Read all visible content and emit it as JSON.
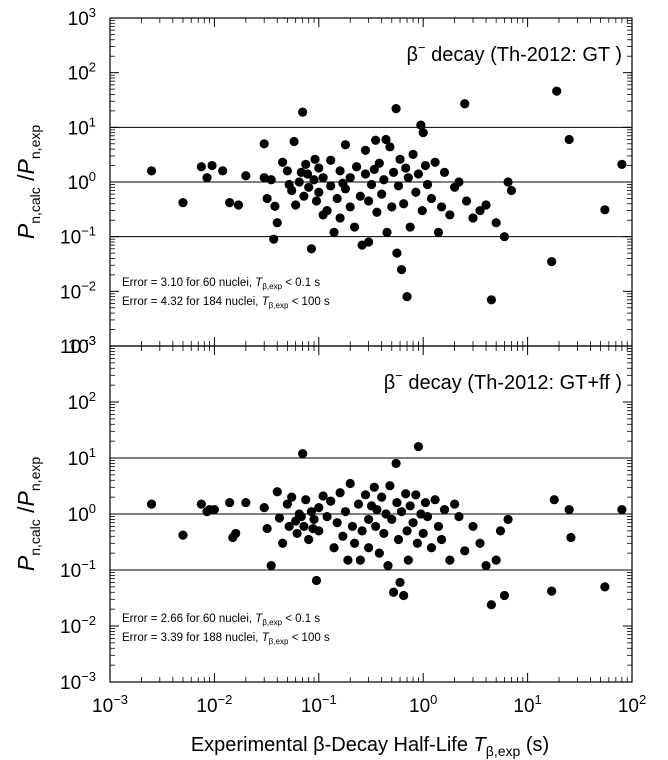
{
  "chart_data": [
    {
      "type": "scatter",
      "annotation": "β⁻ decay (Th-2012: GT )",
      "annotation_prefix": "β",
      "annotation_sup": "−",
      "annotation_rest": " decay (Th-2012: GT )",
      "ylabel_main": "P",
      "ylabel_sub1": "n,calc",
      "ylabel_sep": " /",
      "ylabel_main2": "P",
      "ylabel_sub2": "n,exp",
      "x_scale": "log",
      "y_scale": "log",
      "xlim": [
        0.001,
        100
      ],
      "ylim": [
        0.001,
        1000
      ],
      "y_ticks": [
        "10-3",
        "10-2",
        "10-1",
        "100",
        "101",
        "102",
        "103"
      ],
      "reference_lines": [
        0.1,
        1,
        10
      ],
      "error_lines": [
        {
          "text": "Error = 3.10  for 60 nuclei, ",
          "var": "T",
          "sub": "β,exp",
          "cond": " < 0.1 s"
        },
        {
          "text": "Error = 4.32  for 184 nuclei, ",
          "var": "T",
          "sub": "β,exp",
          "cond": " < 100 s"
        }
      ],
      "points": [
        [
          0.0025,
          1.6
        ],
        [
          0.005,
          0.42
        ],
        [
          0.0075,
          1.9
        ],
        [
          0.0095,
          2.0
        ],
        [
          0.0085,
          1.2
        ],
        [
          0.012,
          1.6
        ],
        [
          0.014,
          0.42
        ],
        [
          0.017,
          0.38
        ],
        [
          0.02,
          1.3
        ],
        [
          0.03,
          5.0
        ],
        [
          0.035,
          1.1
        ],
        [
          0.03,
          1.2
        ],
        [
          0.032,
          0.5
        ],
        [
          0.038,
          0.36
        ],
        [
          0.04,
          0.18
        ],
        [
          0.037,
          0.09
        ],
        [
          0.045,
          2.3
        ],
        [
          0.05,
          1.6
        ],
        [
          0.052,
          0.9
        ],
        [
          0.055,
          0.7
        ],
        [
          0.058,
          5.5
        ],
        [
          0.06,
          0.38
        ],
        [
          0.065,
          1.0
        ],
        [
          0.068,
          1.5
        ],
        [
          0.07,
          19.0
        ],
        [
          0.072,
          0.55
        ],
        [
          0.075,
          2.1
        ],
        [
          0.078,
          1.4
        ],
        [
          0.08,
          0.8
        ],
        [
          0.085,
          0.06
        ],
        [
          0.09,
          1.1
        ],
        [
          0.092,
          2.6
        ],
        [
          0.095,
          0.45
        ],
        [
          0.1,
          1.8
        ],
        [
          0.1,
          0.65
        ],
        [
          0.11,
          1.2
        ],
        [
          0.11,
          0.25
        ],
        [
          0.12,
          0.3
        ],
        [
          0.13,
          2.5
        ],
        [
          0.13,
          0.85
        ],
        [
          0.14,
          0.12
        ],
        [
          0.15,
          0.5
        ],
        [
          0.16,
          1.6
        ],
        [
          0.16,
          0.22
        ],
        [
          0.17,
          0.95
        ],
        [
          0.18,
          4.8
        ],
        [
          0.18,
          0.75
        ],
        [
          0.2,
          1.2
        ],
        [
          0.2,
          0.35
        ],
        [
          0.22,
          0.15
        ],
        [
          0.23,
          1.9
        ],
        [
          0.25,
          0.55
        ],
        [
          0.26,
          0.07
        ],
        [
          0.28,
          1.4
        ],
        [
          0.28,
          3.8
        ],
        [
          0.3,
          0.45
        ],
        [
          0.3,
          0.08
        ],
        [
          0.32,
          0.9
        ],
        [
          0.34,
          1.7
        ],
        [
          0.35,
          5.8
        ],
        [
          0.36,
          0.28
        ],
        [
          0.38,
          2.2
        ],
        [
          0.4,
          0.6
        ],
        [
          0.42,
          1.1
        ],
        [
          0.44,
          6.0
        ],
        [
          0.45,
          0.12
        ],
        [
          0.48,
          4.4
        ],
        [
          0.5,
          0.35
        ],
        [
          0.52,
          1.5
        ],
        [
          0.55,
          22.0
        ],
        [
          0.56,
          0.05
        ],
        [
          0.58,
          0.85
        ],
        [
          0.6,
          2.6
        ],
        [
          0.62,
          0.025
        ],
        [
          0.65,
          0.4
        ],
        [
          0.68,
          1.8
        ],
        [
          0.7,
          0.008
        ],
        [
          0.72,
          1.2
        ],
        [
          0.75,
          0.15
        ],
        [
          0.8,
          3.2
        ],
        [
          0.85,
          0.65
        ],
        [
          0.9,
          1.4
        ],
        [
          0.95,
          11.0
        ],
        [
          0.98,
          0.3
        ],
        [
          1.0,
          8.0
        ],
        [
          1.05,
          2.0
        ],
        [
          1.1,
          0.9
        ],
        [
          1.2,
          0.5
        ],
        [
          1.3,
          2.3
        ],
        [
          1.4,
          0.12
        ],
        [
          1.5,
          0.35
        ],
        [
          1.6,
          1.5
        ],
        [
          1.8,
          0.25
        ],
        [
          2.0,
          0.8
        ],
        [
          2.2,
          1.0
        ],
        [
          2.5,
          27.0
        ],
        [
          2.6,
          0.45
        ],
        [
          3.0,
          0.22
        ],
        [
          3.5,
          0.3
        ],
        [
          4.0,
          0.38
        ],
        [
          4.5,
          0.007
        ],
        [
          5.0,
          0.18
        ],
        [
          6.0,
          0.1
        ],
        [
          6.5,
          1.0
        ],
        [
          7.0,
          0.7
        ],
        [
          17.0,
          0.035
        ],
        [
          19.0,
          46.0
        ],
        [
          25.0,
          6.0
        ],
        [
          55.0,
          0.31
        ],
        [
          80.0,
          2.1
        ]
      ]
    },
    {
      "type": "scatter",
      "annotation": "β⁻ decay (Th-2012: GT+ff )",
      "annotation_prefix": "β",
      "annotation_sup": "−",
      "annotation_rest": " decay (Th-2012: GT+ff )",
      "ylabel_main": "P",
      "ylabel_sub1": "n,calc",
      "ylabel_sep": " /",
      "ylabel_main2": "P",
      "ylabel_sub2": "n,exp",
      "xlabel_prefix": "Experimental β-Decay Half-Life ",
      "xlabel_var": "T",
      "xlabel_sub": "β,exp",
      "xlabel_suffix": " (s)",
      "x_scale": "log",
      "y_scale": "log",
      "xlim": [
        0.001,
        100
      ],
      "ylim": [
        0.001,
        1000
      ],
      "x_ticks": [
        "10-3",
        "10-2",
        "10-1",
        "100",
        "101",
        "102"
      ],
      "y_ticks": [
        "10-3",
        "10-2",
        "10-1",
        "100",
        "101",
        "102",
        "103"
      ],
      "reference_lines": [
        0.1,
        1,
        10
      ],
      "error_lines": [
        {
          "text": "Error = 2.66  for 60 nuclei, ",
          "var": "T",
          "sub": "β,exp",
          "cond": " < 0.1 s"
        },
        {
          "text": "Error = 3.39  for 188 nuclei, ",
          "var": "T",
          "sub": "β,exp",
          "cond": " < 100 s"
        }
      ],
      "points": [
        [
          0.0025,
          1.5
        ],
        [
          0.005,
          0.42
        ],
        [
          0.0075,
          1.5
        ],
        [
          0.009,
          1.2
        ],
        [
          0.0085,
          1.1
        ],
        [
          0.01,
          1.2
        ],
        [
          0.015,
          0.38
        ],
        [
          0.016,
          0.45
        ],
        [
          0.02,
          1.6
        ],
        [
          0.014,
          1.6
        ],
        [
          0.03,
          1.3
        ],
        [
          0.032,
          0.55
        ],
        [
          0.035,
          0.12
        ],
        [
          0.04,
          2.5
        ],
        [
          0.042,
          0.85
        ],
        [
          0.045,
          0.3
        ],
        [
          0.05,
          1.5
        ],
        [
          0.052,
          0.6
        ],
        [
          0.055,
          2.0
        ],
        [
          0.06,
          0.75
        ],
        [
          0.062,
          0.45
        ],
        [
          0.065,
          1.0
        ],
        [
          0.068,
          0.9
        ],
        [
          0.07,
          12.0
        ],
        [
          0.072,
          0.6
        ],
        [
          0.075,
          1.8
        ],
        [
          0.08,
          0.35
        ],
        [
          0.085,
          1.1
        ],
        [
          0.088,
          0.55
        ],
        [
          0.09,
          0.8
        ],
        [
          0.095,
          0.065
        ],
        [
          0.1,
          1.3
        ],
        [
          0.1,
          0.5
        ],
        [
          0.11,
          2.1
        ],
        [
          0.12,
          0.9
        ],
        [
          0.13,
          1.7
        ],
        [
          0.14,
          0.25
        ],
        [
          0.15,
          0.7
        ],
        [
          0.16,
          2.4
        ],
        [
          0.17,
          0.4
        ],
        [
          0.18,
          1.1
        ],
        [
          0.19,
          0.15
        ],
        [
          0.2,
          3.5
        ],
        [
          0.21,
          0.6
        ],
        [
          0.22,
          0.3
        ],
        [
          0.24,
          1.5
        ],
        [
          0.25,
          0.15
        ],
        [
          0.26,
          0.5
        ],
        [
          0.28,
          2.2
        ],
        [
          0.3,
          0.8
        ],
        [
          0.3,
          0.25
        ],
        [
          0.32,
          1.4
        ],
        [
          0.34,
          3.0
        ],
        [
          0.35,
          0.6
        ],
        [
          0.36,
          1.2
        ],
        [
          0.38,
          0.2
        ],
        [
          0.4,
          2.0
        ],
        [
          0.42,
          0.45
        ],
        [
          0.44,
          1.0
        ],
        [
          0.46,
          0.12
        ],
        [
          0.48,
          3.2
        ],
        [
          0.5,
          0.8
        ],
        [
          0.52,
          0.04
        ],
        [
          0.55,
          8.0
        ],
        [
          0.56,
          1.6
        ],
        [
          0.58,
          0.35
        ],
        [
          0.6,
          0.06
        ],
        [
          0.62,
          1.1
        ],
        [
          0.65,
          0.035
        ],
        [
          0.68,
          2.3
        ],
        [
          0.7,
          0.5
        ],
        [
          0.72,
          0.15
        ],
        [
          0.75,
          1.4
        ],
        [
          0.8,
          0.7
        ],
        [
          0.85,
          2.2
        ],
        [
          0.88,
          0.3
        ],
        [
          0.9,
          16.0
        ],
        [
          0.95,
          1.0
        ],
        [
          1.0,
          0.45
        ],
        [
          1.05,
          1.6
        ],
        [
          1.1,
          0.9
        ],
        [
          1.2,
          0.25
        ],
        [
          1.3,
          1.8
        ],
        [
          1.4,
          0.6
        ],
        [
          1.5,
          0.35
        ],
        [
          1.6,
          1.2
        ],
        [
          1.8,
          0.15
        ],
        [
          2.0,
          1.5
        ],
        [
          2.2,
          0.9
        ],
        [
          2.5,
          0.22
        ],
        [
          3.0,
          0.6
        ],
        [
          3.5,
          0.3
        ],
        [
          4.0,
          0.12
        ],
        [
          4.5,
          0.024
        ],
        [
          5.0,
          0.15
        ],
        [
          5.5,
          0.5
        ],
        [
          6.0,
          0.035
        ],
        [
          6.5,
          0.8
        ],
        [
          17.0,
          0.042
        ],
        [
          18.0,
          1.8
        ],
        [
          25.0,
          1.2
        ],
        [
          26.0,
          0.38
        ],
        [
          55.0,
          0.05
        ],
        [
          80.0,
          1.2
        ]
      ]
    }
  ]
}
